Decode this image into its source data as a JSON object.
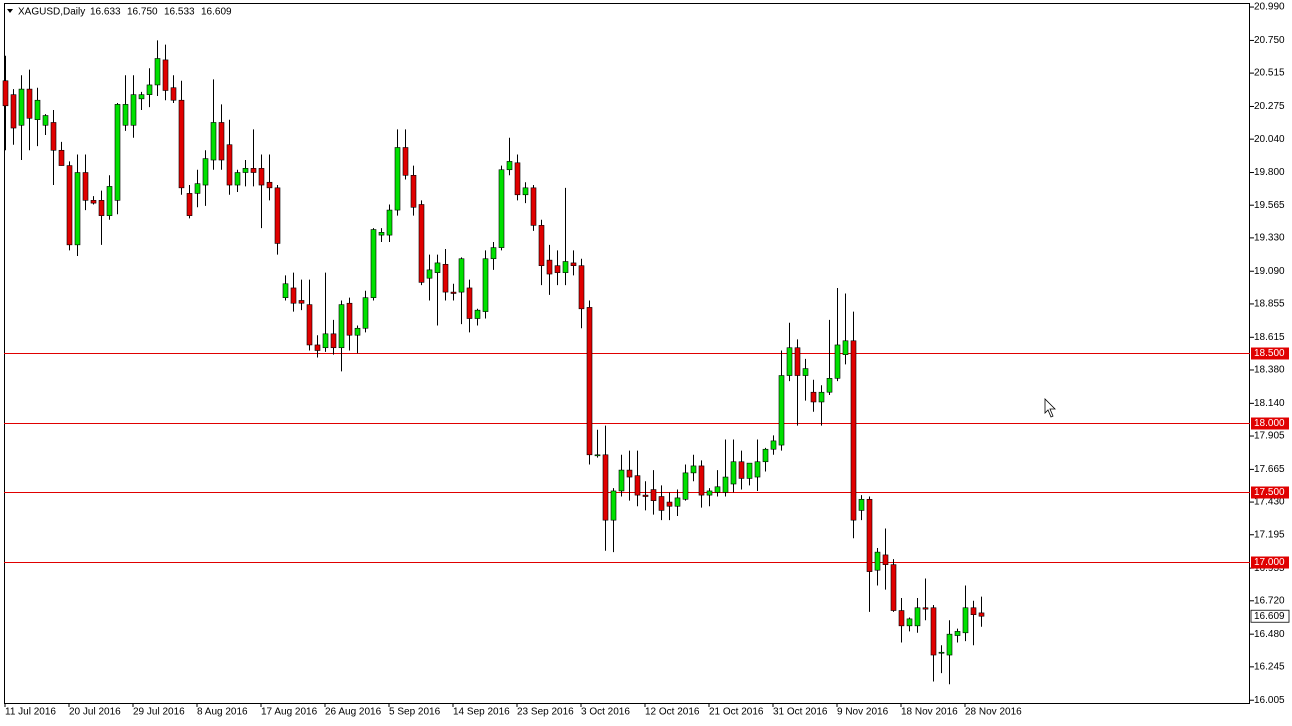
{
  "chart_data": {
    "type": "candlestick",
    "title": "XAGUSD,Daily",
    "header_values": [
      "16.633",
      "16.750",
      "16.533",
      "16.609"
    ],
    "up_color": "#00e000",
    "down_color": "#e00000",
    "categories": [
      "11 Jul 2016",
      null,
      null,
      null,
      null,
      null,
      null,
      null,
      "20 Jul 2016",
      null,
      null,
      null,
      null,
      null,
      null,
      null,
      "29 Jul 2016",
      null,
      null,
      null,
      null,
      null,
      null,
      null,
      "8 Aug 2016",
      null,
      null,
      null,
      null,
      null,
      null,
      null,
      "17 Aug 2016",
      null,
      null,
      null,
      null,
      null,
      null,
      null,
      "26 Aug 2016",
      null,
      null,
      null,
      null,
      null,
      null,
      null,
      "5 Sep 2016",
      null,
      null,
      null,
      null,
      null,
      null,
      null,
      "14 Sep 2016",
      null,
      null,
      null,
      null,
      null,
      null,
      null,
      "23 Sep 2016",
      null,
      null,
      null,
      null,
      null,
      null,
      null,
      "3 Oct 2016",
      null,
      null,
      null,
      null,
      null,
      null,
      null,
      "12 Oct 2016",
      null,
      null,
      null,
      null,
      null,
      null,
      null,
      "21 Oct 2016",
      null,
      null,
      null,
      null,
      null,
      null,
      null,
      "31 Oct 2016",
      null,
      null,
      null,
      null,
      null,
      null,
      null,
      "9 Nov 2016",
      null,
      null,
      null,
      null,
      null,
      null,
      null,
      "18 Nov 2016",
      null,
      null,
      null,
      null,
      null,
      null,
      null,
      "28 Nov 2016",
      null,
      null
    ],
    "open": [
      20.46,
      20.36,
      20.14,
      20.4,
      20.18,
      20.14,
      20.16,
      19.96,
      19.85,
      19.28,
      19.8,
      19.6,
      19.6,
      19.49,
      19.6,
      20.14,
      20.14,
      20.33,
      20.36,
      20.43,
      20.61,
      20.41,
      20.32,
      19.65,
      19.65,
      19.71,
      19.89,
      20.16,
      20.0,
      19.71,
      19.8,
      19.83,
      19.83,
      19.73,
      19.69,
      18.9,
      18.97,
      18.88,
      18.85,
      18.56,
      18.54,
      18.64,
      18.54,
      18.86,
      18.63,
      18.68,
      18.9,
      19.35,
      19.35,
      19.53,
      19.98,
      19.78,
      19.57,
      19.04,
      19.08,
      19.14,
      18.94,
      18.94,
      18.97,
      18.75,
      18.8,
      19.18,
      19.26,
      19.82,
      19.87,
      19.64,
      19.69,
      19.42,
      19.17,
      19.13,
      19.08,
      19.15,
      19.13,
      18.83,
      17.77,
      17.77,
      17.3,
      17.51,
      17.66,
      17.62,
      17.48,
      17.52,
      17.47,
      17.43,
      17.4,
      17.45,
      17.64,
      17.69,
      17.48,
      17.5,
      17.5,
      17.56,
      17.72,
      17.6,
      17.61,
      17.72,
      17.81,
      17.84,
      18.34,
      18.54,
      18.34,
      18.22,
      18.15,
      18.22,
      18.32,
      18.49,
      18.59,
      17.37,
      17.45,
      16.94,
      17.05,
      16.98,
      16.65,
      16.54,
      16.54,
      16.67,
      16.67,
      16.35,
      16.33,
      16.47,
      16.49,
      16.67,
      16.633
    ],
    "high": [
      20.64,
      20.4,
      20.5,
      20.54,
      20.41,
      20.22,
      20.25,
      20.02,
      19.88,
      19.93,
      19.93,
      19.63,
      19.67,
      19.78,
      20.3,
      20.5,
      20.5,
      20.38,
      20.55,
      20.75,
      20.72,
      20.5,
      20.46,
      19.71,
      19.82,
      19.96,
      20.47,
      20.29,
      20.18,
      19.82,
      19.89,
      20.11,
      19.93,
      19.93,
      19.71,
      19.06,
      19.08,
      19.03,
      19.03,
      18.63,
      19.08,
      18.74,
      18.88,
      18.9,
      18.7,
      18.95,
      19.4,
      19.4,
      19.57,
      20.11,
      20.11,
      19.85,
      19.6,
      19.21,
      19.21,
      19.25,
      19.0,
      19.19,
      19.03,
      18.82,
      19.24,
      19.3,
      19.85,
      20.05,
      19.93,
      19.73,
      19.71,
      19.46,
      19.28,
      19.24,
      19.69,
      19.24,
      19.18,
      18.88,
      17.95,
      17.98,
      17.53,
      17.77,
      17.8,
      17.8,
      17.58,
      17.66,
      17.55,
      17.5,
      17.52,
      17.7,
      17.77,
      17.73,
      17.53,
      17.66,
      17.88,
      17.88,
      17.8,
      17.7,
      17.88,
      17.82,
      17.91,
      18.52,
      18.72,
      18.6,
      18.46,
      18.31,
      18.27,
      18.74,
      18.97,
      18.93,
      18.8,
      17.48,
      17.47,
      17.1,
      17.24,
      17.02,
      16.74,
      16.6,
      16.74,
      16.88,
      16.69,
      16.4,
      16.58,
      16.52,
      16.83,
      16.72,
      16.75
    ],
    "low": [
      19.96,
      20.0,
      19.89,
      19.96,
      19.99,
      20.07,
      19.71,
      19.85,
      19.24,
      19.2,
      19.53,
      19.57,
      19.28,
      19.46,
      19.5,
      20.1,
      20.05,
      20.25,
      20.27,
      20.35,
      20.32,
      20.3,
      19.64,
      19.47,
      19.55,
      19.56,
      19.82,
      19.82,
      19.64,
      19.66,
      19.7,
      19.7,
      19.4,
      19.6,
      19.21,
      18.88,
      18.8,
      18.81,
      18.52,
      18.47,
      18.51,
      18.49,
      18.37,
      18.52,
      18.5,
      18.65,
      18.88,
      19.3,
      19.3,
      19.49,
      19.75,
      19.49,
      18.99,
      18.88,
      18.7,
      18.88,
      18.88,
      18.71,
      18.65,
      18.7,
      18.75,
      19.1,
      19.24,
      19.78,
      19.6,
      19.58,
      19.38,
      18.99,
      18.92,
      18.99,
      18.99,
      19.06,
      18.68,
      17.7,
      17.75,
      17.08,
      17.07,
      17.47,
      17.44,
      17.4,
      17.37,
      17.34,
      17.3,
      17.3,
      17.33,
      17.44,
      17.58,
      17.39,
      17.4,
      17.47,
      17.47,
      17.5,
      17.52,
      17.55,
      17.51,
      17.65,
      17.77,
      17.8,
      18.3,
      17.98,
      18.16,
      18.08,
      17.98,
      18.2,
      18.3,
      18.42,
      17.17,
      17.3,
      16.64,
      16.83,
      16.8,
      16.64,
      16.42,
      16.5,
      16.49,
      16.58,
      16.14,
      16.2,
      16.12,
      16.42,
      16.43,
      16.4,
      16.533
    ],
    "close": [
      20.28,
      20.12,
      20.4,
      20.19,
      20.32,
      20.21,
      19.96,
      19.85,
      19.28,
      19.8,
      19.6,
      19.58,
      19.49,
      19.7,
      20.29,
      20.29,
      20.36,
      20.36,
      20.43,
      20.62,
      20.39,
      20.32,
      19.69,
      19.49,
      19.72,
      19.9,
      20.16,
      19.89,
      19.71,
      19.8,
      19.83,
      19.8,
      19.71,
      19.69,
      19.29,
      19.0,
      18.86,
      18.86,
      18.56,
      18.52,
      18.64,
      18.54,
      18.85,
      18.63,
      18.68,
      18.9,
      19.39,
      19.37,
      19.53,
      19.98,
      19.78,
      19.55,
      19.01,
      19.1,
      19.15,
      18.94,
      18.93,
      19.18,
      18.75,
      18.81,
      19.18,
      19.26,
      19.82,
      19.88,
      19.64,
      19.69,
      19.42,
      19.13,
      19.07,
      19.08,
      19.16,
      19.13,
      18.82,
      17.77,
      17.77,
      17.3,
      17.51,
      17.66,
      17.61,
      17.48,
      17.47,
      17.44,
      17.37,
      17.4,
      17.46,
      17.64,
      17.69,
      17.48,
      17.51,
      17.54,
      17.61,
      17.72,
      17.6,
      17.71,
      17.72,
      17.81,
      17.87,
      18.34,
      18.54,
      18.34,
      18.39,
      18.15,
      18.22,
      18.32,
      18.56,
      18.59,
      17.3,
      17.45,
      16.93,
      17.07,
      16.98,
      16.65,
      16.54,
      16.59,
      16.67,
      16.66,
      16.33,
      16.35,
      16.48,
      16.5,
      16.67,
      16.62,
      16.609
    ],
    "ylim": [
      15.985,
      21.012
    ],
    "yticks": [
      {
        "value": 20.99,
        "label": "20.990"
      },
      {
        "value": 20.75,
        "label": "20.750"
      },
      {
        "value": 20.515,
        "label": "20.515"
      },
      {
        "value": 20.275,
        "label": "20.275"
      },
      {
        "value": 20.04,
        "label": "20.040"
      },
      {
        "value": 19.8,
        "label": "19.800"
      },
      {
        "value": 19.565,
        "label": "19.565"
      },
      {
        "value": 19.33,
        "label": "19.330"
      },
      {
        "value": 19.09,
        "label": "19.090"
      },
      {
        "value": 18.855,
        "label": "18.855"
      },
      {
        "value": 18.615,
        "label": "18.615"
      },
      {
        "value": 18.38,
        "label": "18.380"
      },
      {
        "value": 18.14,
        "label": "18.140"
      },
      {
        "value": 17.905,
        "label": "17.905"
      },
      {
        "value": 17.665,
        "label": "17.665"
      },
      {
        "value": 17.43,
        "label": "17.430"
      },
      {
        "value": 17.195,
        "label": "17.195"
      },
      {
        "value": 16.955,
        "label": "16.955"
      },
      {
        "value": 16.72,
        "label": "16.720"
      },
      {
        "value": 16.48,
        "label": "16.480"
      },
      {
        "value": 16.245,
        "label": "16.245"
      },
      {
        "value": 16.005,
        "label": "16.005"
      }
    ],
    "hlines_color": "#e00000",
    "hlines": [
      {
        "value": 18.5,
        "label": "18.500"
      },
      {
        "value": 18.0,
        "label": "18.000"
      },
      {
        "value": 17.5,
        "label": "17.500"
      },
      {
        "value": 17.0,
        "label": "17.000"
      }
    ],
    "price_label": {
      "value": 16.609,
      "label": "16.609"
    }
  }
}
